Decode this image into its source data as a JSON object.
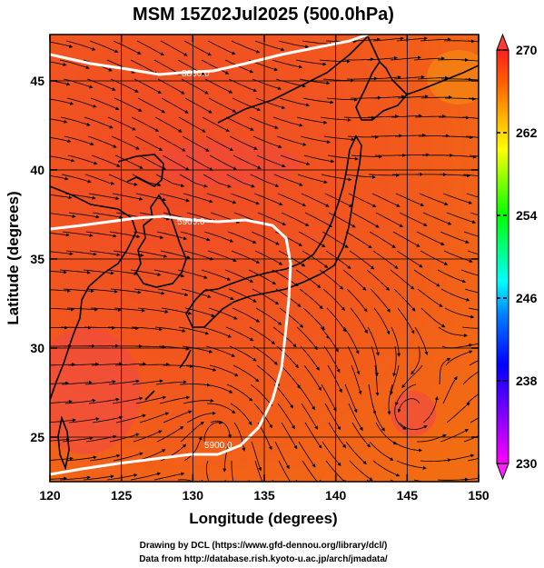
{
  "chart_data": {
    "type": "heatmap",
    "title": "MSM 15Z02Jul2025 (500.0hPa)",
    "xlabel": "Longitude (degrees)",
    "ylabel": "Latitude  (degrees)",
    "xlim": [
      120,
      150
    ],
    "ylim": [
      22.5,
      47.6
    ],
    "x_ticks": [
      120,
      125,
      130,
      135,
      140,
      145,
      150
    ],
    "y_ticks": [
      25,
      30,
      35,
      40,
      45
    ],
    "colorbar": {
      "min": 230,
      "max": 270,
      "ticks": [
        230,
        238,
        246,
        254,
        262,
        270
      ],
      "colors": [
        "#ff00ff",
        "#8000ff",
        "#0000ff",
        "#0080ff",
        "#00ffff",
        "#00ff80",
        "#00ff00",
        "#80ff00",
        "#ffff00",
        "#ffb000",
        "#ff6000",
        "#ff2020"
      ]
    },
    "contours": [
      {
        "label": "5800.0"
      },
      {
        "label": "5900.0"
      },
      {
        "label": "5900.0"
      }
    ],
    "field_color": "#f0521e"
  },
  "credits": {
    "line1": "Drawing by DCL (https://www.gfd-dennou.org/library/dcl/)",
    "line2": "Data from http://database.rish.kyoto-u.ac.jp/arch/jmadata/"
  }
}
